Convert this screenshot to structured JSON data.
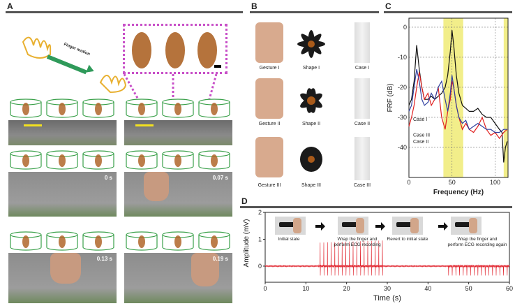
{
  "panels": {
    "a": "A",
    "b": "B",
    "c": "C",
    "d": "D"
  },
  "panel_a": {
    "arrow_label": "Finger motion",
    "times": [
      "0 s",
      "0.07 s",
      "0.13 s",
      "0.19 s"
    ]
  },
  "panel_b": {
    "gestures": [
      "Gesture I",
      "Gesture II",
      "Gesture III"
    ],
    "shapes": [
      "Shape I",
      "Shape II",
      "Shape III"
    ],
    "cases": [
      "Case I",
      "Case II",
      "Case III"
    ]
  },
  "chart_c": {
    "type": "line",
    "xlabel": "Frequency (Hz)",
    "ylabel": "FRF (dB)",
    "xlim": [
      0,
      115
    ],
    "ylim": [
      -50,
      3
    ],
    "x_ticks": [
      0,
      50,
      100
    ],
    "y_ticks": [
      0,
      -10,
      -20,
      -30,
      -40
    ],
    "highlight_bands": [
      [
        40,
        63
      ],
      [
        110,
        115
      ]
    ],
    "series": [
      {
        "name": "Case I",
        "color": "#111111",
        "x": [
          0,
          3,
          6,
          9,
          12,
          15,
          18,
          22,
          26,
          30,
          34,
          38,
          42,
          45,
          48,
          50,
          52,
          55,
          58,
          62,
          66,
          70,
          75,
          80,
          85,
          90,
          95,
          100,
          105,
          108,
          110,
          112,
          114
        ],
        "y": [
          -26,
          -24,
          -18,
          -6,
          -14,
          -20,
          -24,
          -24,
          -23,
          -24,
          -23,
          -22,
          -20,
          -16,
          -8,
          -1,
          -6,
          -16,
          -22,
          -26,
          -27,
          -28,
          -28,
          -27,
          -29,
          -30,
          -30,
          -32,
          -34,
          -35,
          -45,
          -40,
          -38
        ]
      },
      {
        "name": "Case II",
        "color": "#e02020",
        "x": [
          0,
          3,
          6,
          9,
          12,
          15,
          18,
          22,
          26,
          30,
          34,
          38,
          42,
          45,
          48,
          50,
          52,
          55,
          58,
          62,
          66,
          70,
          75,
          80,
          85,
          90,
          95,
          100,
          105,
          110,
          114
        ],
        "y": [
          -33,
          -30,
          -26,
          -20,
          -15,
          -20,
          -24,
          -22,
          -26,
          -24,
          -20,
          -30,
          -34,
          -28,
          -24,
          -18,
          -20,
          -26,
          -30,
          -34,
          -32,
          -34,
          -35,
          -33,
          -30,
          -34,
          -36,
          -35,
          -37,
          -35,
          -34
        ]
      },
      {
        "name": "Case III",
        "color": "#3040a0",
        "x": [
          0,
          3,
          6,
          9,
          12,
          15,
          18,
          22,
          26,
          30,
          34,
          38,
          42,
          45,
          48,
          50,
          52,
          55,
          58,
          62,
          66,
          70,
          75,
          80,
          85,
          90,
          95,
          100,
          105,
          110,
          114
        ],
        "y": [
          -28,
          -26,
          -20,
          -14,
          -18,
          -24,
          -26,
          -25,
          -22,
          -24,
          -20,
          -18,
          -24,
          -28,
          -22,
          -16,
          -20,
          -26,
          -30,
          -32,
          -31,
          -34,
          -33,
          -32,
          -33,
          -34,
          -34,
          -35,
          -35,
          -34,
          -34
        ]
      }
    ],
    "series_labels": [
      "Case I",
      "Case II",
      "Case III"
    ]
  },
  "chart_d": {
    "type": "line",
    "xlabel": "Time (s)",
    "ylabel": "Amplitude (mV)",
    "xlim": [
      0,
      60
    ],
    "ylim": [
      -0.6,
      2
    ],
    "x_ticks": [
      0,
      10,
      20,
      30,
      40,
      50,
      60
    ],
    "y_ticks": [
      0,
      1,
      2
    ],
    "line_color": "#e0202a",
    "active_windows": [
      [
        13,
        29
      ],
      [
        45,
        60
      ]
    ],
    "beat_interval_s": 0.9,
    "captions": [
      "Initial state",
      "Wrap the finger and perform ECG recording",
      "Revert to initial state",
      "Wrap the finger and perform ECG recording again"
    ]
  }
}
